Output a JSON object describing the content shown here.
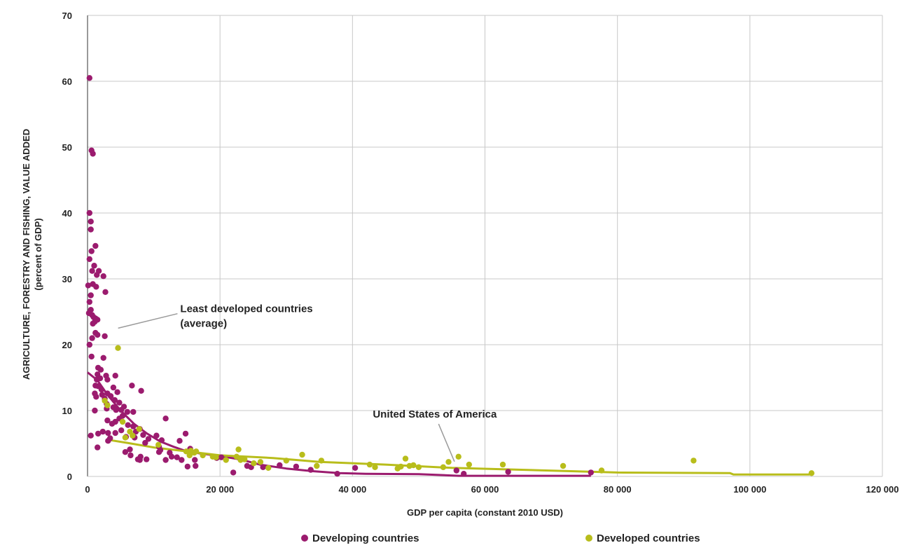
{
  "chart_data": {
    "type": "scatter",
    "xlabel": "GDP per capita (constant 2010 USD)",
    "ylabel_line1": "AGRICULTURE, FORESTRY AND FISHING, VALUE ADDED",
    "ylabel_line2": "(percent of GDP)",
    "xlim": [
      0,
      120000
    ],
    "ylim": [
      0,
      70
    ],
    "x_ticks": [
      0,
      20000,
      40000,
      60000,
      80000,
      100000,
      120000
    ],
    "x_tick_labels": [
      "0",
      "20 000",
      "40 000",
      "60 000",
      "80 000",
      "100 000",
      "120 000"
    ],
    "y_ticks": [
      0,
      10,
      20,
      30,
      40,
      50,
      60,
      70
    ],
    "y_tick_labels": [
      "0",
      "10",
      "20",
      "30",
      "40",
      "50",
      "60",
      "70"
    ],
    "grid": true,
    "legend_position": "bottom",
    "series": [
      {
        "name": "Developing countries",
        "color": "#9b1b6e",
        "points": [
          [
            300,
            60.5
          ],
          [
            600,
            49.5
          ],
          [
            800,
            49
          ],
          [
            300,
            40
          ],
          [
            500,
            38.7
          ],
          [
            500,
            37.5
          ],
          [
            1200,
            35
          ],
          [
            600,
            34.2
          ],
          [
            300,
            33
          ],
          [
            1000,
            32
          ],
          [
            700,
            31.2
          ],
          [
            1700,
            31.2
          ],
          [
            1400,
            30.6
          ],
          [
            2400,
            30.4
          ],
          [
            800,
            29.2
          ],
          [
            100,
            29
          ],
          [
            1300,
            28.8
          ],
          [
            2700,
            28
          ],
          [
            500,
            27.5
          ],
          [
            300,
            26.5
          ],
          [
            500,
            25.3
          ],
          [
            200,
            24.8
          ],
          [
            700,
            24.5
          ],
          [
            900,
            24.2
          ],
          [
            1200,
            24
          ],
          [
            1500,
            23.8
          ],
          [
            1100,
            23.5
          ],
          [
            800,
            23.2
          ],
          [
            2600,
            21.3
          ],
          [
            700,
            21
          ],
          [
            1200,
            21.8
          ],
          [
            1500,
            21.5
          ],
          [
            300,
            20
          ],
          [
            2400,
            18
          ],
          [
            600,
            18.2
          ],
          [
            1600,
            16.5
          ],
          [
            2000,
            16.2
          ],
          [
            1500,
            15.5
          ],
          [
            2800,
            15.3
          ],
          [
            3000,
            14.7
          ],
          [
            4200,
            15.3
          ],
          [
            1900,
            14.9
          ],
          [
            1400,
            14.7
          ],
          [
            1200,
            13.8
          ],
          [
            1600,
            13.7
          ],
          [
            2100,
            13.2
          ],
          [
            3900,
            13.5
          ],
          [
            4500,
            12.8
          ],
          [
            3000,
            12.6
          ],
          [
            6700,
            13.8
          ],
          [
            8100,
            13
          ],
          [
            2200,
            12.4
          ],
          [
            2600,
            11.8
          ],
          [
            1100,
            12.6
          ],
          [
            3500,
            12.2
          ],
          [
            1300,
            12.1
          ],
          [
            4100,
            11.6
          ],
          [
            4800,
            11.2
          ],
          [
            2900,
            11
          ],
          [
            5500,
            10.6
          ],
          [
            3900,
            10.5
          ],
          [
            2900,
            10.3
          ],
          [
            4300,
            10.1
          ],
          [
            1100,
            10
          ],
          [
            5100,
            10.1
          ],
          [
            6000,
            9.8
          ],
          [
            6900,
            9.8
          ],
          [
            5300,
            9.2
          ],
          [
            4800,
            8.8
          ],
          [
            3000,
            8.5
          ],
          [
            4200,
            8.3
          ],
          [
            11800,
            8.8
          ],
          [
            3700,
            8
          ],
          [
            6100,
            7.8
          ],
          [
            6900,
            7.6
          ],
          [
            7900,
            7.2
          ],
          [
            5100,
            7
          ],
          [
            2300,
            6.8
          ],
          [
            3100,
            6.6
          ],
          [
            7300,
            6.8
          ],
          [
            4200,
            6.6
          ],
          [
            1600,
            6.5
          ],
          [
            8400,
            6.3
          ],
          [
            14800,
            6.5
          ],
          [
            500,
            6.2
          ],
          [
            10400,
            6.2
          ],
          [
            5800,
            6
          ],
          [
            3400,
            5.8
          ],
          [
            7100,
            5.9
          ],
          [
            9200,
            5.7
          ],
          [
            11200,
            5.5
          ],
          [
            3100,
            5.4
          ],
          [
            13900,
            5.4
          ],
          [
            8700,
            5.1
          ],
          [
            10800,
            4.5
          ],
          [
            1500,
            4.4
          ],
          [
            6400,
            4.1
          ],
          [
            15500,
            4.2
          ],
          [
            11000,
            4
          ],
          [
            5700,
            3.7
          ],
          [
            10800,
            3.7
          ],
          [
            12400,
            3.6
          ],
          [
            6500,
            3.2
          ],
          [
            8000,
            3
          ],
          [
            12700,
            3
          ],
          [
            13500,
            2.9
          ],
          [
            7600,
            2.6
          ],
          [
            7900,
            2.5
          ],
          [
            11800,
            2.5
          ],
          [
            8900,
            2.6
          ],
          [
            14200,
            2.5
          ],
          [
            16200,
            2.5
          ],
          [
            19500,
            2.8
          ],
          [
            20200,
            2.9
          ],
          [
            16300,
            1.6
          ],
          [
            15100,
            1.5
          ],
          [
            24100,
            1.6
          ],
          [
            24700,
            1.4
          ],
          [
            26500,
            1.4
          ],
          [
            29000,
            1.7
          ],
          [
            31500,
            1.5
          ],
          [
            33700,
            1.0
          ],
          [
            40400,
            1.3
          ],
          [
            37700,
            0.4
          ],
          [
            22000,
            0.6
          ],
          [
            55700,
            0.9
          ],
          [
            56800,
            0.4
          ],
          [
            63500,
            0.7
          ],
          [
            76000,
            0.6
          ]
        ],
        "trend": [
          [
            0,
            15.8
          ],
          [
            1500,
            14.6
          ],
          [
            3000,
            12.4
          ],
          [
            5000,
            10.0
          ],
          [
            7000,
            8.0
          ],
          [
            9000,
            6.5
          ],
          [
            11000,
            5.3
          ],
          [
            13000,
            4.5
          ],
          [
            15000,
            3.8
          ],
          [
            17000,
            3.5
          ],
          [
            20000,
            3.1
          ],
          [
            23000,
            2.6
          ],
          [
            26000,
            1.8
          ],
          [
            30000,
            1.2
          ],
          [
            34000,
            0.8
          ],
          [
            38000,
            0.5
          ],
          [
            42000,
            0.4
          ],
          [
            50000,
            0.35
          ],
          [
            56000,
            0.1
          ],
          [
            76000,
            0.1
          ]
        ]
      },
      {
        "name": "Developed countries",
        "color": "#b8bd1b",
        "points": [
          [
            4600,
            19.5
          ],
          [
            2600,
            11.5
          ],
          [
            3000,
            10.8
          ],
          [
            5300,
            8.3
          ],
          [
            7800,
            7.2
          ],
          [
            6400,
            6.8
          ],
          [
            6800,
            6.2
          ],
          [
            5700,
            5.9
          ],
          [
            10700,
            4.8
          ],
          [
            15600,
            3.9
          ],
          [
            16400,
            3.8
          ],
          [
            14900,
            3.8
          ],
          [
            16100,
            3.6
          ],
          [
            15400,
            3.2
          ],
          [
            17400,
            3.2
          ],
          [
            18900,
            3.0
          ],
          [
            19400,
            2.9
          ],
          [
            20900,
            2.5
          ],
          [
            22800,
            4.1
          ],
          [
            22500,
            3.0
          ],
          [
            23100,
            2.5
          ],
          [
            23700,
            2.6
          ],
          [
            25100,
            2.0
          ],
          [
            26100,
            2.2
          ],
          [
            27300,
            1.3
          ],
          [
            30000,
            2.4
          ],
          [
            32400,
            3.3
          ],
          [
            34600,
            1.6
          ],
          [
            35300,
            2.4
          ],
          [
            42600,
            1.8
          ],
          [
            43400,
            1.4
          ],
          [
            46800,
            1.2
          ],
          [
            47300,
            1.5
          ],
          [
            48000,
            2.7
          ],
          [
            48600,
            1.6
          ],
          [
            49200,
            1.7
          ],
          [
            50000,
            1.4
          ],
          [
            53700,
            1.4
          ],
          [
            54500,
            2.2
          ],
          [
            56000,
            3.0
          ],
          [
            57600,
            1.8
          ],
          [
            62700,
            1.8
          ],
          [
            71800,
            1.6
          ],
          [
            77600,
            0.9
          ],
          [
            91500,
            2.4
          ],
          [
            109300,
            0.5
          ]
        ],
        "trend": [
          [
            3500,
            5.5
          ],
          [
            6000,
            5.1
          ],
          [
            10000,
            4.4
          ],
          [
            15000,
            3.8
          ],
          [
            20000,
            3.2
          ],
          [
            28000,
            2.8
          ],
          [
            35000,
            2.2
          ],
          [
            45000,
            1.8
          ],
          [
            55000,
            1.3
          ],
          [
            66000,
            1.0
          ],
          [
            80000,
            0.6
          ],
          [
            97000,
            0.5
          ],
          [
            97500,
            0.3
          ],
          [
            109000,
            0.3
          ]
        ]
      }
    ],
    "annotations": [
      {
        "text_line1": "Least developed countries",
        "text_line2": "(average)",
        "anchor": [
          2500,
          22.3
        ],
        "label_pos": [
          14000,
          24.5
        ]
      },
      {
        "text_line1": "United States of America",
        "anchor": [
          53700,
          1.4
        ],
        "label_pos": [
          52000,
          8.5
        ]
      }
    ]
  }
}
